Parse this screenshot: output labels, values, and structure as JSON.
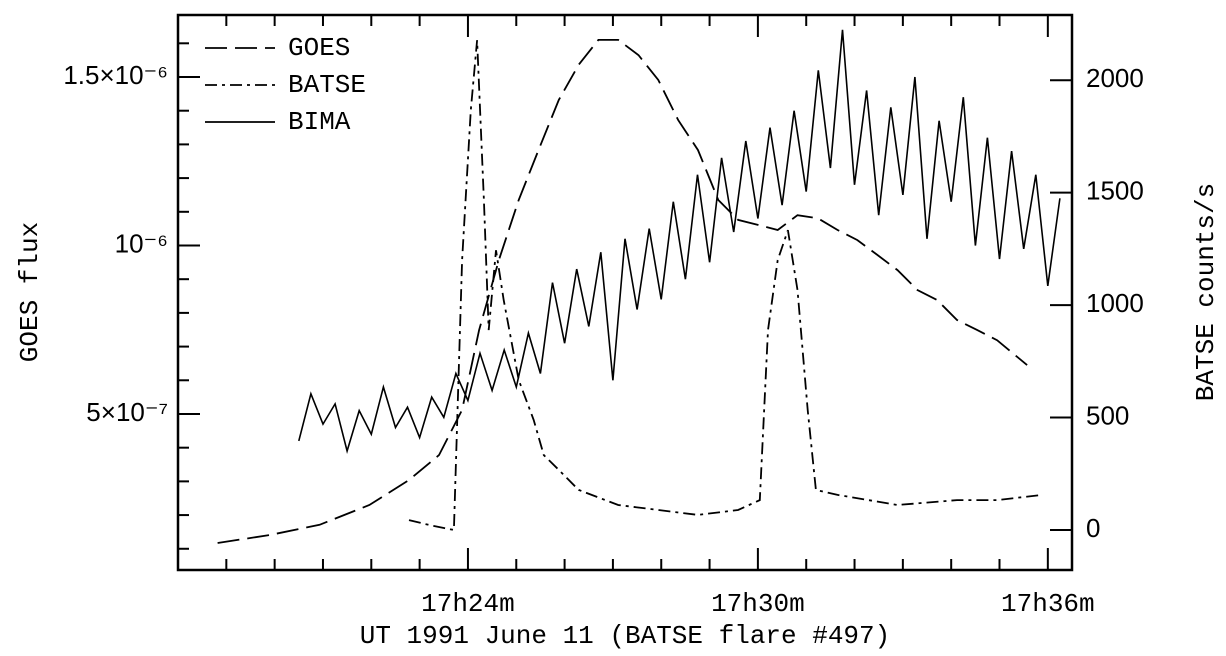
{
  "chart_data": {
    "type": "line",
    "xlabel": "UT 1991 June 11 (BATSE flare #497)",
    "ylabel": "GOES flux",
    "y2label": "BATSE counts/s",
    "xlim": [
      18,
      36.5
    ],
    "xticks": [
      {
        "value": 24,
        "label": "17h24m"
      },
      {
        "value": 30,
        "label": "17h30m"
      },
      {
        "value": 36,
        "label": "17h36m"
      }
    ],
    "xminor_ticks": [
      19,
      20,
      21,
      22,
      23,
      25,
      26,
      27,
      28,
      29,
      31,
      32,
      33,
      34,
      35
    ],
    "ylim": [
      3.7e-08,
      1.684e-06
    ],
    "yticks": [
      {
        "value": 5e-07,
        "label": "5×10⁻⁷"
      },
      {
        "value": 1e-06,
        "label": "10⁻⁶"
      },
      {
        "value": 1.5e-06,
        "label": "1.5×10⁻⁶"
      }
    ],
    "yminor_ticks": [
      1e-07,
      2e-07,
      3e-07,
      4e-07,
      6e-07,
      7e-07,
      8e-07,
      9e-07,
      1.1e-06,
      1.2e-06,
      1.3e-06,
      1.4e-06,
      1.6e-06
    ],
    "y2lim": [
      -178,
      2290
    ],
    "y2ticks": [
      0,
      500,
      1000,
      1500,
      2000
    ],
    "legend": "upper left",
    "series": [
      {
        "name": "GOES",
        "color": "#000000",
        "line_style": "dashed",
        "x": [
          18.82,
          19.9,
          20.93,
          21.96,
          22.78,
          23.4,
          23.88,
          24.23,
          24.64,
          25.05,
          25.46,
          25.88,
          26.29,
          26.7,
          27.11,
          27.53,
          27.94,
          28.35,
          28.76,
          29.18,
          29.59,
          30.0,
          30.41,
          30.82,
          31.24,
          31.65,
          32.06,
          32.47,
          32.89,
          33.3,
          33.71,
          34.12,
          34.54,
          34.95,
          35.57
        ],
        "values": [
          1.17e-07,
          1.41e-07,
          1.71e-07,
          2.3e-07,
          3.04e-07,
          3.78e-07,
          5.12e-07,
          7.49e-07,
          9.57e-07,
          1.135e-06,
          1.283e-06,
          1.432e-06,
          1.536e-06,
          1.61e-06,
          1.61e-06,
          1.565e-06,
          1.491e-06,
          1.372e-06,
          1.283e-06,
          1.135e-06,
          1.076e-06,
          1.061e-06,
          1.046e-06,
          1.09e-06,
          1.081e-06,
          1.046e-06,
          1.016e-06,
          9.72e-07,
          9.27e-07,
          8.68e-07,
          8.38e-07,
          7.79e-07,
          7.49e-07,
          7.19e-07,
          6.45e-07
        ]
      },
      {
        "name": "BATSE",
        "color": "#000000",
        "line_style": "dashdot",
        "axis": "y2",
        "x": [
          22.78,
          23.2,
          23.71,
          23.88,
          24.06,
          24.19,
          24.33,
          24.43,
          24.58,
          24.74,
          25.05,
          25.36,
          25.57,
          25.88,
          26.29,
          27.11,
          27.94,
          28.76,
          29.59,
          30.04,
          30.21,
          30.41,
          30.62,
          30.82,
          31.03,
          31.2,
          31.65,
          32.89,
          34.12,
          34.95,
          35.88
        ],
        "values": [
          44,
          22,
          0,
          1200,
          1867,
          2178,
          1467,
          889,
          1244,
          1022,
          667,
          489,
          333,
          267,
          178,
          111,
          89,
          67,
          89,
          133,
          889,
          1200,
          1333,
          1067,
          533,
          178,
          156,
          111,
          133,
          133,
          156
        ]
      },
      {
        "name": "BIMA",
        "color": "#000000",
        "line_style": "solid",
        "x": [
          20.5,
          20.75,
          21,
          21.25,
          21.5,
          21.75,
          22,
          22.25,
          22.5,
          22.75,
          23,
          23.25,
          23.5,
          23.75,
          24,
          24.25,
          24.5,
          24.75,
          25,
          25.25,
          25.5,
          25.75,
          26,
          26.25,
          26.5,
          26.75,
          27,
          27.25,
          27.5,
          27.75,
          28,
          28.25,
          28.5,
          28.75,
          29,
          29.25,
          29.5,
          29.75,
          30,
          30.25,
          30.5,
          30.75,
          31,
          31.25,
          31.5,
          31.75,
          32,
          32.25,
          32.5,
          32.75,
          33,
          33.25,
          33.5,
          33.75,
          34,
          34.25,
          34.5,
          34.75,
          35,
          35.25,
          35.5,
          35.75,
          36,
          36.25
        ],
        "values": [
          4.2e-07,
          5.6e-07,
          4.7e-07,
          5.3e-07,
          3.9e-07,
          5.1e-07,
          4.4e-07,
          5.8e-07,
          4.6e-07,
          5.2e-07,
          4.3e-07,
          5.5e-07,
          4.9e-07,
          6.2e-07,
          5.4e-07,
          6.8e-07,
          5.7e-07,
          6.9e-07,
          5.8e-07,
          7.4e-07,
          6.2e-07,
          8.9e-07,
          7.1e-07,
          9.3e-07,
          7.6e-07,
          9.8e-07,
          6e-07,
          1.02e-06,
          8.1e-07,
          1.05e-06,
          8.4e-07,
          1.13e-06,
          9e-07,
          1.21e-06,
          9.5e-07,
          1.26e-06,
          1.04e-06,
          1.31e-06,
          1.08e-06,
          1.35e-06,
          1.12e-06,
          1.4e-06,
          1.16e-06,
          1.52e-06,
          1.23e-06,
          1.64e-06,
          1.18e-06,
          1.46e-06,
          1.09e-06,
          1.41e-06,
          1.15e-06,
          1.5e-06,
          1.02e-06,
          1.37e-06,
          1.13e-06,
          1.44e-06,
          1e-06,
          1.32e-06,
          9.6e-07,
          1.28e-06,
          9.9e-07,
          1.21e-06,
          8.8e-07,
          1.14e-06
        ]
      }
    ]
  }
}
